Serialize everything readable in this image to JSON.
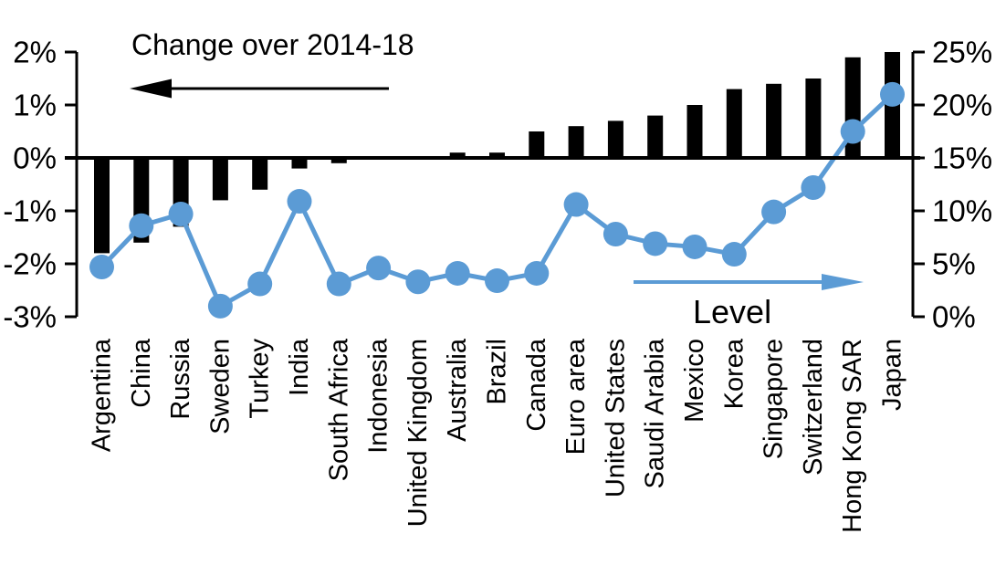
{
  "chart_data": {
    "type": "bar",
    "subtype": "combo-bar-line-dual-axis",
    "title": "",
    "categories": [
      "Argentina",
      "China",
      "Russia",
      "Sweden",
      "Turkey",
      "India",
      "South Africa",
      "Indonesia",
      "United Kingdom",
      "Australia",
      "Brazil",
      "Canada",
      "Euro area",
      "United States",
      "Saudi Arabia",
      "Mexico",
      "Korea",
      "Singapore",
      "Switzerland",
      "Hong Kong SAR",
      "Japan"
    ],
    "series": [
      {
        "name": "Change over 2014-18",
        "type": "bar",
        "axis": "left",
        "color": "#000000",
        "values": [
          -1.8,
          -1.6,
          -1.3,
          -0.8,
          -0.6,
          -0.2,
          -0.1,
          0,
          0,
          0.1,
          0.1,
          0.5,
          0.6,
          0.7,
          0.8,
          1.0,
          1.3,
          1.4,
          1.5,
          1.9,
          2.0
        ]
      },
      {
        "name": "Level",
        "type": "line",
        "axis": "right",
        "color": "#5B9BD5",
        "values": [
          4.7,
          8.6,
          9.7,
          1.0,
          3.1,
          10.9,
          3.1,
          4.6,
          3.3,
          4.1,
          3.4,
          4.1,
          10.6,
          7.8,
          6.9,
          6.6,
          5.9,
          9.9,
          12.2,
          17.5,
          21.0
        ]
      }
    ],
    "left_axis": {
      "tick_labels": [
        "2%",
        "1%",
        "0%",
        "-1%",
        "-2%",
        "-3%"
      ],
      "tick_values": [
        2,
        1,
        0,
        -1,
        -2,
        -3
      ],
      "range": [
        -3,
        2
      ],
      "unit": "%"
    },
    "right_axis": {
      "tick_labels": [
        "25%",
        "20%",
        "15%",
        "10%",
        "5%",
        "0%"
      ],
      "tick_values": [
        25,
        20,
        15,
        10,
        5,
        0
      ],
      "range": [
        0,
        25
      ],
      "unit": "%"
    },
    "annotations": {
      "bars": {
        "label": "Change over 2014-18",
        "arrow_direction": "left",
        "arrow_color": "#000000"
      },
      "line": {
        "label": "Level",
        "arrow_direction": "right",
        "arrow_color": "#5B9BD5"
      }
    },
    "grid": "off",
    "legend": "none"
  },
  "colors": {
    "bar": "#000000",
    "line": "#5B9BD5",
    "text": "#000000",
    "background": "#ffffff"
  }
}
